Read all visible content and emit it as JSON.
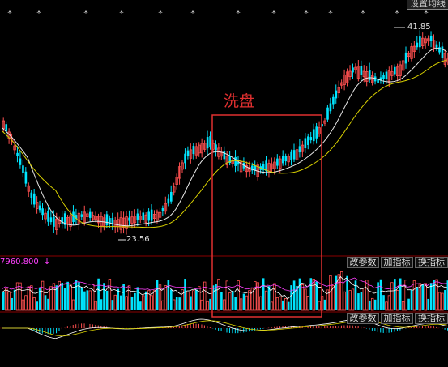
{
  "toolbar": {
    "ma_settings_label": "设置均线"
  },
  "annotation": {
    "label": "洗盘",
    "color": "#e03030"
  },
  "price_chart": {
    "high_marker": "41.85",
    "low_marker": "23.56",
    "top_markers_count": 13,
    "colors": {
      "up": "#ff5050",
      "down": "#00e5ff",
      "ma_short": "#e8e8e8",
      "ma_long": "#d8d000"
    }
  },
  "volume_panel": {
    "value_label": "7960.800",
    "value_color": "#ff40ff",
    "arrow": "↓",
    "buttons": [
      "改参数",
      "加指标",
      "换指标"
    ]
  },
  "macd_panel": {
    "buttons": [
      "改参数",
      "加指标",
      "换指标"
    ]
  }
}
